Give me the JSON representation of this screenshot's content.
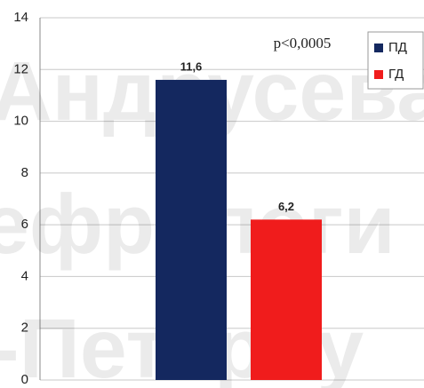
{
  "chart_data": {
    "type": "bar",
    "categories": [
      null
    ],
    "series": [
      {
        "name": "ПД",
        "color": "#14285f",
        "values": [
          11.6
        ],
        "value_labels": [
          "11,6"
        ]
      },
      {
        "name": "ГД",
        "color": "#f01c1c",
        "values": [
          6.2
        ],
        "value_labels": [
          "6,2"
        ]
      }
    ],
    "annotation": "p<0,0005",
    "watermark": [
      "Андрусева",
      "ефрологи",
      "-Петербу"
    ],
    "ylim": [
      0,
      14
    ],
    "yticks": [
      0,
      2,
      4,
      6,
      8,
      10,
      12,
      14
    ],
    "grid": true,
    "legend": "top-right"
  }
}
